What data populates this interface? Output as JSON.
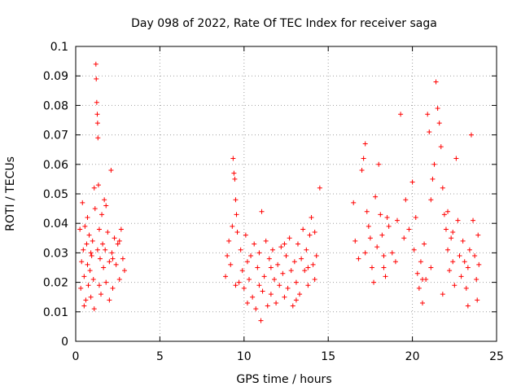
{
  "chart_data": {
    "type": "scatter",
    "title": "Day 098 of 2022, Rate Of TEC Index for receiver saga",
    "xlabel": "GPS time / hours",
    "ylabel": "ROTI / TECUs",
    "xlim": [
      0,
      25
    ],
    "ylim": [
      0,
      0.1
    ],
    "x_ticks": [
      "0",
      "5",
      "10",
      "15",
      "20",
      "25"
    ],
    "y_ticks": [
      "0",
      "0.01",
      "0.02",
      "0.03",
      "0.04",
      "0.05",
      "0.06",
      "0.07",
      "0.08",
      "0.09",
      "0.1"
    ],
    "grid": true,
    "marker": "+",
    "color": "#ff0000",
    "series": [
      {
        "points": [
          [
            0.25,
            0.038
          ],
          [
            0.3,
            0.018
          ],
          [
            0.35,
            0.027
          ],
          [
            0.4,
            0.047
          ],
          [
            0.45,
            0.031
          ],
          [
            0.5,
            0.022
          ],
          [
            0.55,
            0.039
          ],
          [
            0.6,
            0.014
          ],
          [
            0.65,
            0.033
          ],
          [
            0.7,
            0.026
          ],
          [
            0.75,
            0.019
          ],
          [
            0.8,
            0.036
          ],
          [
            0.85,
            0.024
          ],
          [
            0.9,
            0.015
          ],
          [
            0.95,
            0.029
          ],
          [
            1.0,
            0.034
          ],
          [
            1.05,
            0.021
          ],
          [
            1.1,
            0.052
          ],
          [
            1.15,
            0.045
          ],
          [
            1.2,
            0.094
          ],
          [
            1.22,
            0.089
          ],
          [
            1.25,
            0.081
          ],
          [
            1.28,
            0.077
          ],
          [
            1.3,
            0.074
          ],
          [
            1.32,
            0.069
          ],
          [
            1.35,
            0.053
          ],
          [
            1.4,
            0.038
          ],
          [
            1.45,
            0.028
          ],
          [
            1.5,
            0.016
          ],
          [
            1.55,
            0.043
          ],
          [
            1.6,
            0.033
          ],
          [
            1.65,
            0.025
          ],
          [
            1.7,
            0.048
          ],
          [
            1.75,
            0.031
          ],
          [
            1.8,
            0.02
          ],
          [
            1.9,
            0.037
          ],
          [
            2.0,
            0.027
          ],
          [
            2.1,
            0.058
          ],
          [
            2.15,
            0.03
          ],
          [
            2.2,
            0.018
          ],
          [
            2.3,
            0.035
          ],
          [
            2.4,
            0.026
          ],
          [
            2.5,
            0.033
          ],
          [
            2.6,
            0.021
          ],
          [
            2.7,
            0.038
          ],
          [
            2.8,
            0.028
          ],
          [
            2.9,
            0.024
          ],
          [
            0.5,
            0.012
          ],
          [
            0.7,
            0.042
          ],
          [
            1.1,
            0.011
          ],
          [
            1.4,
            0.019
          ],
          [
            1.8,
            0.046
          ],
          [
            2.2,
            0.028
          ],
          [
            2.6,
            0.034
          ],
          [
            0.9,
            0.03
          ],
          [
            1.3,
            0.031
          ],
          [
            2.0,
            0.014
          ],
          [
            8.9,
            0.022
          ],
          [
            9.0,
            0.029
          ],
          [
            9.1,
            0.034
          ],
          [
            9.2,
            0.026
          ],
          [
            9.3,
            0.039
          ],
          [
            9.35,
            0.062
          ],
          [
            9.4,
            0.057
          ],
          [
            9.45,
            0.055
          ],
          [
            9.5,
            0.048
          ],
          [
            9.55,
            0.043
          ],
          [
            9.6,
            0.037
          ],
          [
            9.7,
            0.02
          ],
          [
            9.8,
            0.031
          ],
          [
            9.9,
            0.024
          ],
          [
            10.0,
            0.018
          ],
          [
            10.1,
            0.036
          ],
          [
            10.2,
            0.027
          ],
          [
            10.3,
            0.021
          ],
          [
            10.4,
            0.029
          ],
          [
            10.5,
            0.015
          ],
          [
            10.6,
            0.033
          ],
          [
            10.7,
            0.011
          ],
          [
            10.8,
            0.025
          ],
          [
            10.9,
            0.019
          ],
          [
            11.0,
            0.007
          ],
          [
            11.05,
            0.044
          ],
          [
            11.1,
            0.017
          ],
          [
            11.2,
            0.022
          ],
          [
            11.3,
            0.034
          ],
          [
            11.4,
            0.012
          ],
          [
            11.5,
            0.028
          ],
          [
            11.6,
            0.016
          ],
          [
            11.7,
            0.031
          ],
          [
            11.8,
            0.021
          ],
          [
            11.9,
            0.013
          ],
          [
            12.0,
            0.026
          ],
          [
            12.1,
            0.019
          ],
          [
            12.2,
            0.032
          ],
          [
            12.3,
            0.023
          ],
          [
            12.4,
            0.015
          ],
          [
            12.5,
            0.029
          ],
          [
            12.6,
            0.018
          ],
          [
            12.7,
            0.035
          ],
          [
            12.8,
            0.024
          ],
          [
            12.9,
            0.012
          ],
          [
            13.0,
            0.027
          ],
          [
            13.1,
            0.02
          ],
          [
            13.2,
            0.033
          ],
          [
            13.3,
            0.016
          ],
          [
            13.4,
            0.028
          ],
          [
            13.5,
            0.038
          ],
          [
            13.6,
            0.024
          ],
          [
            13.7,
            0.031
          ],
          [
            13.8,
            0.019
          ],
          [
            13.9,
            0.036
          ],
          [
            14.0,
            0.042
          ],
          [
            14.1,
            0.026
          ],
          [
            14.2,
            0.021
          ],
          [
            14.3,
            0.029
          ],
          [
            14.5,
            0.052
          ],
          [
            9.5,
            0.019
          ],
          [
            10.2,
            0.013
          ],
          [
            10.9,
            0.03
          ],
          [
            11.6,
            0.025
          ],
          [
            12.4,
            0.033
          ],
          [
            13.1,
            0.014
          ],
          [
            13.8,
            0.025
          ],
          [
            14.2,
            0.037
          ],
          [
            16.5,
            0.047
          ],
          [
            16.6,
            0.034
          ],
          [
            16.8,
            0.028
          ],
          [
            17.0,
            0.058
          ],
          [
            17.1,
            0.062
          ],
          [
            17.2,
            0.067
          ],
          [
            17.3,
            0.044
          ],
          [
            17.4,
            0.039
          ],
          [
            17.5,
            0.035
          ],
          [
            17.6,
            0.025
          ],
          [
            17.7,
            0.02
          ],
          [
            17.8,
            0.049
          ],
          [
            17.9,
            0.032
          ],
          [
            18.0,
            0.06
          ],
          [
            18.1,
            0.043
          ],
          [
            18.2,
            0.036
          ],
          [
            18.3,
            0.029
          ],
          [
            18.4,
            0.022
          ],
          [
            18.5,
            0.042
          ],
          [
            18.6,
            0.039
          ],
          [
            18.8,
            0.03
          ],
          [
            19.0,
            0.027
          ],
          [
            19.1,
            0.041
          ],
          [
            19.3,
            0.077
          ],
          [
            19.5,
            0.035
          ],
          [
            19.6,
            0.048
          ],
          [
            19.8,
            0.038
          ],
          [
            20.0,
            0.054
          ],
          [
            20.1,
            0.031
          ],
          [
            20.2,
            0.042
          ],
          [
            20.3,
            0.023
          ],
          [
            20.4,
            0.018
          ],
          [
            20.5,
            0.027
          ],
          [
            20.6,
            0.013
          ],
          [
            20.7,
            0.033
          ],
          [
            20.8,
            0.021
          ],
          [
            20.9,
            0.077
          ],
          [
            21.0,
            0.071
          ],
          [
            21.1,
            0.048
          ],
          [
            21.2,
            0.055
          ],
          [
            21.3,
            0.06
          ],
          [
            21.4,
            0.088
          ],
          [
            21.5,
            0.079
          ],
          [
            21.6,
            0.074
          ],
          [
            21.7,
            0.066
          ],
          [
            21.8,
            0.052
          ],
          [
            21.9,
            0.043
          ],
          [
            22.0,
            0.038
          ],
          [
            22.1,
            0.031
          ],
          [
            22.2,
            0.024
          ],
          [
            22.3,
            0.035
          ],
          [
            22.4,
            0.027
          ],
          [
            22.5,
            0.019
          ],
          [
            22.6,
            0.062
          ],
          [
            22.7,
            0.041
          ],
          [
            22.8,
            0.029
          ],
          [
            22.9,
            0.022
          ],
          [
            23.0,
            0.034
          ],
          [
            23.1,
            0.027
          ],
          [
            23.2,
            0.018
          ],
          [
            23.3,
            0.025
          ],
          [
            23.4,
            0.031
          ],
          [
            23.5,
            0.07
          ],
          [
            23.6,
            0.041
          ],
          [
            23.7,
            0.029
          ],
          [
            23.8,
            0.021
          ],
          [
            23.85,
            0.014
          ],
          [
            23.9,
            0.036
          ],
          [
            23.95,
            0.026
          ],
          [
            17.2,
            0.03
          ],
          [
            18.3,
            0.025
          ],
          [
            20.6,
            0.021
          ],
          [
            21.8,
            0.016
          ],
          [
            22.4,
            0.037
          ],
          [
            23.3,
            0.012
          ],
          [
            21.1,
            0.025
          ],
          [
            22.1,
            0.044
          ]
        ]
      }
    ]
  }
}
